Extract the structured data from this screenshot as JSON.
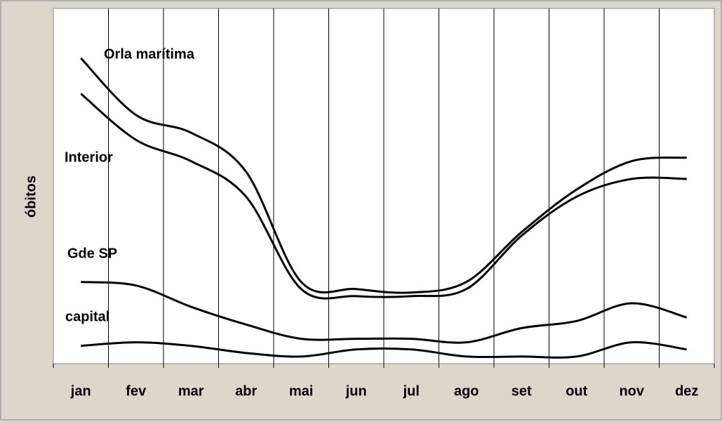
{
  "chart_data": {
    "type": "line",
    "y_label": "óbitos",
    "categories": [
      "jan",
      "fev",
      "mar",
      "abr",
      "mai",
      "jun",
      "jul",
      "ago",
      "set",
      "out",
      "nov",
      "dez"
    ],
    "series": [
      {
        "name": "Orla marítima",
        "color": "#000000",
        "values": [
          86,
          70,
          65,
          54,
          23,
          21,
          20,
          23,
          37,
          49,
          57,
          58
        ]
      },
      {
        "name": "Interior",
        "color": "#000000",
        "values": [
          76,
          63,
          57,
          47,
          21,
          19,
          19,
          21,
          36,
          47,
          52,
          52
        ]
      },
      {
        "name": "Gde SP",
        "color": "#000000",
        "values": [
          23,
          22,
          16,
          11,
          7,
          7,
          7,
          6,
          10,
          12,
          17,
          13
        ]
      },
      {
        "name": "capital",
        "color": "#000000",
        "values": [
          5,
          6,
          5,
          3,
          2,
          4,
          4,
          2,
          2,
          2,
          6,
          4
        ]
      }
    ],
    "ylim": [
      0,
      100
    ],
    "xgrid": true
  }
}
